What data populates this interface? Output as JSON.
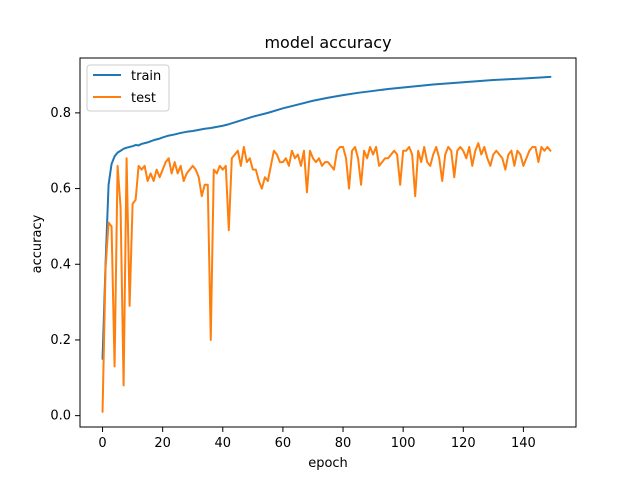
{
  "chart_data": {
    "type": "line",
    "title": "model accuracy",
    "xlabel": "epoch",
    "ylabel": "accuracy",
    "xlim": [
      -7.5,
      157.5
    ],
    "ylim": [
      -0.03,
      0.945
    ],
    "xticks": [
      0,
      20,
      40,
      60,
      80,
      100,
      120,
      140
    ],
    "yticks": [
      0.0,
      0.2,
      0.4,
      0.6,
      0.8
    ],
    "ytick_labels": [
      "0.0",
      "0.2",
      "0.4",
      "0.6",
      "0.8"
    ],
    "legend": "upper left",
    "grid": false,
    "series": [
      {
        "name": "train",
        "color": "#1f77b4",
        "x": [
          0,
          1,
          2,
          3,
          4,
          5,
          6,
          7,
          8,
          9,
          10,
          11,
          12,
          13,
          14,
          15,
          16,
          17,
          18,
          19,
          20,
          22,
          24,
          26,
          28,
          30,
          32,
          34,
          36,
          38,
          40,
          42,
          44,
          46,
          48,
          50,
          55,
          60,
          65,
          70,
          75,
          80,
          85,
          90,
          95,
          100,
          105,
          110,
          115,
          120,
          125,
          130,
          135,
          140,
          145,
          149
        ],
        "values": [
          0.15,
          0.4,
          0.61,
          0.665,
          0.685,
          0.695,
          0.7,
          0.705,
          0.708,
          0.71,
          0.712,
          0.715,
          0.714,
          0.718,
          0.72,
          0.722,
          0.725,
          0.728,
          0.73,
          0.732,
          0.735,
          0.74,
          0.743,
          0.747,
          0.75,
          0.752,
          0.755,
          0.758,
          0.76,
          0.763,
          0.766,
          0.77,
          0.775,
          0.78,
          0.785,
          0.79,
          0.8,
          0.812,
          0.822,
          0.832,
          0.84,
          0.847,
          0.853,
          0.858,
          0.863,
          0.867,
          0.871,
          0.875,
          0.878,
          0.881,
          0.884,
          0.887,
          0.889,
          0.891,
          0.893,
          0.895
        ]
      },
      {
        "name": "test",
        "color": "#ff7f0e",
        "x": [
          0,
          1,
          2,
          3,
          4,
          5,
          6,
          7,
          8,
          9,
          10,
          11,
          12,
          13,
          14,
          15,
          16,
          17,
          18,
          19,
          20,
          21,
          22,
          23,
          24,
          25,
          26,
          27,
          28,
          29,
          30,
          31,
          32,
          33,
          34,
          35,
          36,
          37,
          38,
          39,
          40,
          41,
          42,
          43,
          44,
          45,
          46,
          47,
          48,
          49,
          50,
          51,
          52,
          53,
          54,
          55,
          56,
          57,
          58,
          59,
          60,
          61,
          62,
          63,
          64,
          65,
          66,
          67,
          68,
          69,
          70,
          71,
          72,
          73,
          74,
          75,
          76,
          77,
          78,
          79,
          80,
          81,
          82,
          83,
          84,
          85,
          86,
          87,
          88,
          89,
          90,
          91,
          92,
          93,
          94,
          95,
          96,
          97,
          98,
          99,
          100,
          101,
          102,
          103,
          104,
          105,
          106,
          107,
          108,
          109,
          110,
          111,
          112,
          113,
          114,
          115,
          116,
          117,
          118,
          119,
          120,
          121,
          122,
          123,
          124,
          125,
          126,
          127,
          128,
          129,
          130,
          131,
          132,
          133,
          134,
          135,
          136,
          137,
          138,
          139,
          140,
          141,
          142,
          143,
          144,
          145,
          146,
          147,
          148,
          149
        ],
        "values": [
          0.01,
          0.39,
          0.51,
          0.5,
          0.13,
          0.66,
          0.55,
          0.08,
          0.68,
          0.29,
          0.56,
          0.57,
          0.66,
          0.65,
          0.66,
          0.62,
          0.64,
          0.62,
          0.65,
          0.63,
          0.65,
          0.67,
          0.68,
          0.64,
          0.67,
          0.64,
          0.66,
          0.62,
          0.64,
          0.65,
          0.66,
          0.65,
          0.63,
          0.58,
          0.61,
          0.61,
          0.2,
          0.65,
          0.64,
          0.66,
          0.65,
          0.66,
          0.49,
          0.68,
          0.69,
          0.7,
          0.66,
          0.71,
          0.67,
          0.68,
          0.65,
          0.65,
          0.62,
          0.6,
          0.63,
          0.62,
          0.66,
          0.7,
          0.69,
          0.67,
          0.67,
          0.68,
          0.66,
          0.7,
          0.68,
          0.69,
          0.66,
          0.7,
          0.59,
          0.7,
          0.68,
          0.67,
          0.68,
          0.66,
          0.67,
          0.67,
          0.66,
          0.65,
          0.7,
          0.71,
          0.71,
          0.68,
          0.6,
          0.7,
          0.71,
          0.68,
          0.61,
          0.7,
          0.68,
          0.71,
          0.69,
          0.71,
          0.66,
          0.67,
          0.68,
          0.68,
          0.69,
          0.7,
          0.69,
          0.61,
          0.7,
          0.7,
          0.71,
          0.69,
          0.58,
          0.7,
          0.67,
          0.71,
          0.67,
          0.66,
          0.69,
          0.71,
          0.68,
          0.62,
          0.69,
          0.71,
          0.7,
          0.63,
          0.7,
          0.71,
          0.7,
          0.68,
          0.71,
          0.66,
          0.7,
          0.72,
          0.69,
          0.71,
          0.68,
          0.66,
          0.69,
          0.7,
          0.69,
          0.68,
          0.65,
          0.69,
          0.7,
          0.66,
          0.7,
          0.69,
          0.66,
          0.68,
          0.7,
          0.71,
          0.71,
          0.67,
          0.71,
          0.7,
          0.71,
          0.7
        ]
      }
    ]
  }
}
